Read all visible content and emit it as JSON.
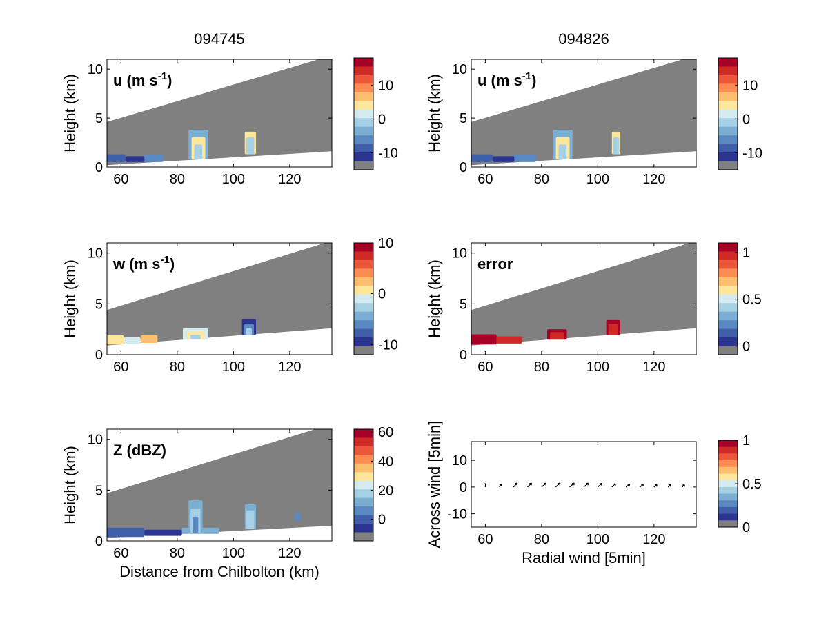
{
  "column_titles": [
    "094745",
    "094826"
  ],
  "colors": {
    "missing": "#808080",
    "frame": "#000000",
    "background": "#ffffff",
    "palette": [
      "#2b3491",
      "#3f5fa8",
      "#5a88c0",
      "#7baed3",
      "#a6d0e4",
      "#d4ebf2",
      "#fee79b",
      "#fdbf6f",
      "#fb8d52",
      "#ea5739",
      "#cf2a27",
      "#a50026"
    ]
  },
  "chart_data": [
    {
      "id": "u_094745",
      "type": "heatmap",
      "column": "094745",
      "label_main": "u (m s",
      "label_sup": "-1",
      "label_tail": ")",
      "xlabel": "",
      "ylabel": "Height (km)",
      "xlim": [
        55,
        135
      ],
      "ylim": [
        0,
        11
      ],
      "xticks": [
        60,
        80,
        100,
        120
      ],
      "yticks": [
        0,
        5,
        10
      ],
      "beam": {
        "top": [
          [
            55,
            4.6
          ],
          [
            135,
            11.4
          ]
        ],
        "bottom": [
          [
            55,
            0.2
          ],
          [
            135,
            1.6
          ]
        ]
      },
      "features": [
        {
          "x": [
            55,
            75
          ],
          "ymin": 0.5,
          "ymax": 1.3,
          "palette_index": [
            1,
            0,
            2
          ]
        },
        {
          "x": [
            84,
            91
          ],
          "ymin": 0.8,
          "ymax": 3.8,
          "palette_index": [
            3,
            6,
            4
          ]
        },
        {
          "x": [
            104,
            108
          ],
          "ymin": 1.3,
          "ymax": 3.6,
          "palette_index": [
            6,
            4
          ]
        }
      ],
      "colorbar": {
        "ticks": [
          "10",
          "0",
          "-10"
        ],
        "tick_values": [
          10,
          0,
          -10
        ],
        "range": [
          -15,
          18
        ]
      }
    },
    {
      "id": "u_094826",
      "type": "heatmap",
      "column": "094826",
      "label_main": "u (m s",
      "label_sup": "-1",
      "label_tail": ")",
      "xlabel": "",
      "ylabel": "Height (km)",
      "xlim": [
        55,
        135
      ],
      "ylim": [
        0,
        11
      ],
      "xticks": [
        60,
        80,
        100,
        120
      ],
      "yticks": [
        0,
        5,
        10
      ],
      "beam": {
        "top": [
          [
            55,
            4.6
          ],
          [
            135,
            11.4
          ]
        ],
        "bottom": [
          [
            55,
            0.2
          ],
          [
            135,
            1.6
          ]
        ]
      },
      "features": [
        {
          "x": [
            55,
            78
          ],
          "ymin": 0.5,
          "ymax": 1.3,
          "palette_index": [
            1,
            0,
            2
          ]
        },
        {
          "x": [
            84,
            91
          ],
          "ymin": 0.8,
          "ymax": 3.8,
          "palette_index": [
            3,
            6,
            4
          ]
        },
        {
          "x": [
            105,
            108
          ],
          "ymin": 1.3,
          "ymax": 3.6,
          "palette_index": [
            6,
            4
          ]
        }
      ],
      "colorbar": {
        "ticks": [
          "10",
          "0",
          "-10"
        ],
        "tick_values": [
          10,
          0,
          -10
        ],
        "range": [
          -15,
          18
        ]
      }
    },
    {
      "id": "w_094745",
      "type": "heatmap",
      "column": "094745",
      "label_main": "w (m s",
      "label_sup": "-1",
      "label_tail": ")",
      "xlabel": "",
      "ylabel": "Height (km)",
      "xlim": [
        55,
        135
      ],
      "ylim": [
        0,
        11
      ],
      "xticks": [
        60,
        80,
        100,
        120
      ],
      "yticks": [
        0,
        5,
        10
      ],
      "beam": {
        "top": [
          [
            55,
            4.4
          ],
          [
            135,
            11.2
          ]
        ],
        "bottom": [
          [
            55,
            0.9
          ],
          [
            135,
            2.6
          ]
        ]
      },
      "features": [
        {
          "x": [
            55,
            73
          ],
          "ymin": 1.0,
          "ymax": 1.9,
          "palette_index": [
            6,
            5,
            7
          ]
        },
        {
          "x": [
            82,
            91
          ],
          "ymin": 1.3,
          "ymax": 2.6,
          "palette_index": [
            5,
            6,
            4
          ]
        },
        {
          "x": [
            103,
            108
          ],
          "ymin": 1.7,
          "ymax": 3.5,
          "palette_index": [
            0,
            2,
            4
          ]
        }
      ],
      "colorbar": {
        "ticks": [
          "10",
          "0",
          "-10"
        ],
        "tick_values": [
          10,
          0,
          -10
        ],
        "range": [
          -12,
          10
        ]
      }
    },
    {
      "id": "error_094826",
      "type": "heatmap",
      "column": "094826",
      "label_main": "error",
      "label_sup": "",
      "label_tail": "",
      "xlabel": "",
      "ylabel": "Height (km)",
      "xlim": [
        55,
        135
      ],
      "ylim": [
        0,
        11
      ],
      "xticks": [
        60,
        80,
        100,
        120
      ],
      "yticks": [
        0,
        5,
        10
      ],
      "beam": {
        "top": [
          [
            55,
            4.4
          ],
          [
            135,
            11.2
          ]
        ],
        "bottom": [
          [
            55,
            0.9
          ],
          [
            135,
            2.6
          ]
        ]
      },
      "features": [
        {
          "x": [
            55,
            73
          ],
          "ymin": 1.0,
          "ymax": 2.0,
          "palette_index": [
            11,
            10
          ]
        },
        {
          "x": [
            82,
            89
          ],
          "ymin": 1.4,
          "ymax": 2.5,
          "palette_index": [
            11,
            10
          ]
        },
        {
          "x": [
            103,
            108
          ],
          "ymin": 1.8,
          "ymax": 3.4,
          "palette_index": [
            11,
            10
          ]
        }
      ],
      "colorbar": {
        "ticks": [
          "1",
          "0.5",
          "0"
        ],
        "tick_values": [
          1,
          0.5,
          0
        ],
        "range": [
          -0.09,
          1.1
        ]
      }
    },
    {
      "id": "z_094745",
      "type": "heatmap",
      "column": "094745",
      "label_main": "Z (dBZ)",
      "label_sup": "",
      "label_tail": "",
      "xlabel": "Distance from Chilbolton (km)",
      "ylabel": "Height (km)",
      "xlim": [
        55,
        135
      ],
      "ylim": [
        0,
        11
      ],
      "xticks": [
        60,
        80,
        100,
        120
      ],
      "yticks": [
        0,
        5,
        10
      ],
      "beam": {
        "top": [
          [
            55,
            4.7
          ],
          [
            135,
            11.5
          ]
        ],
        "bottom": [
          [
            55,
            0.3
          ],
          [
            135,
            1.5
          ]
        ]
      },
      "features": [
        {
          "x": [
            55,
            95
          ],
          "ymin": 0.4,
          "ymax": 1.3,
          "palette_index": [
            1,
            0,
            3
          ]
        },
        {
          "x": [
            84,
            89
          ],
          "ymin": 0.8,
          "ymax": 4.0,
          "palette_index": [
            3,
            4,
            2
          ]
        },
        {
          "x": [
            104,
            108
          ],
          "ymin": 1.2,
          "ymax": 3.6,
          "palette_index": [
            3,
            4
          ]
        },
        {
          "x": [
            122,
            124
          ],
          "ymin": 2.0,
          "ymax": 2.8,
          "palette_index": [
            2
          ]
        }
      ],
      "colorbar": {
        "ticks": [
          "60",
          "40",
          "20",
          "0"
        ],
        "tick_values": [
          60,
          40,
          20,
          0
        ],
        "range": [
          -15,
          62
        ]
      }
    },
    {
      "id": "wind_094826",
      "type": "scatter",
      "column": "094826",
      "label_main": "",
      "label_sup": "",
      "label_tail": "",
      "xlabel": "Radial wind [5min]",
      "ylabel": "Across wind [5min]",
      "xlim": [
        55,
        135
      ],
      "ylim": [
        -15,
        17
      ],
      "xticks": [
        60,
        80,
        100,
        120
      ],
      "yticks": [
        -10,
        0,
        10
      ],
      "arrows": {
        "x": [
          60,
          65,
          70,
          75,
          80,
          85,
          90,
          95,
          100,
          105,
          110,
          115,
          120,
          125,
          130
        ],
        "dx": [
          0.1,
          0.5,
          0.9,
          1.0,
          1.1,
          1.1,
          1.1,
          1.1,
          1.0,
          0.9,
          0.9,
          0.8,
          0.7,
          0.6,
          0.6
        ],
        "dy": [
          1.2,
          1.0,
          1.4,
          1.4,
          1.4,
          1.4,
          1.4,
          1.4,
          1.3,
          1.2,
          1.1,
          1.0,
          0.9,
          0.9,
          0.8
        ]
      },
      "colorbar": {
        "ticks": [
          "1",
          "0.5",
          "0"
        ],
        "tick_values": [
          1,
          0.5,
          0
        ],
        "range": [
          0,
          1
        ]
      }
    }
  ]
}
